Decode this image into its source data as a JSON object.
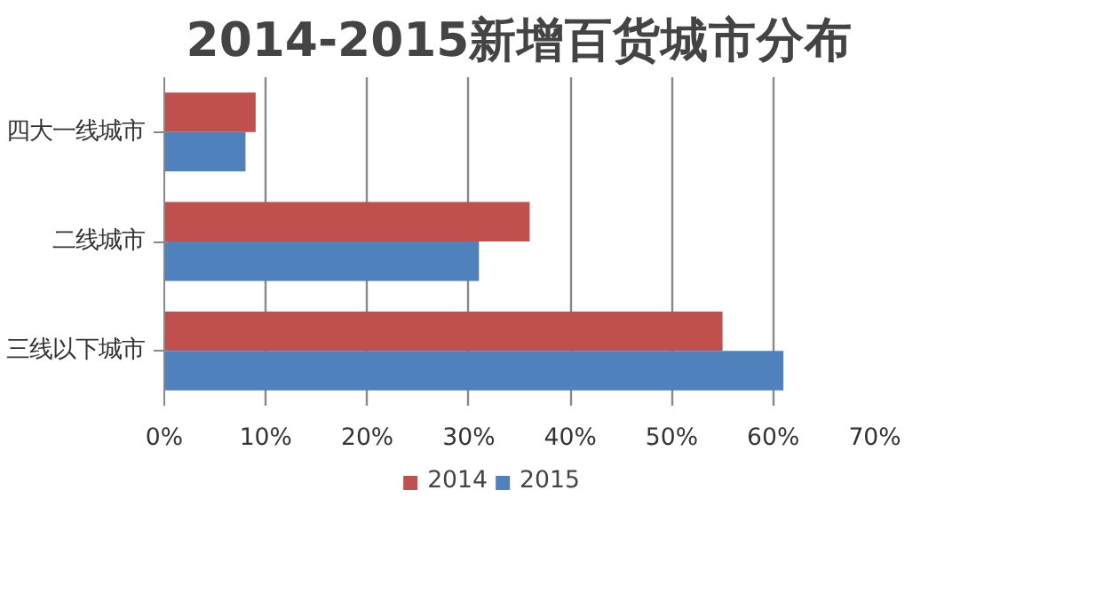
{
  "chart_data": {
    "type": "bar",
    "orientation": "horizontal",
    "title": "2014-2015新增百货城市分布",
    "categories": [
      "四大一线城市",
      "二线城市",
      "三线以下城市"
    ],
    "series": [
      {
        "name": "2014",
        "color": "#c0504d",
        "values": [
          9,
          36,
          55
        ]
      },
      {
        "name": "2015",
        "color": "#4f81bd",
        "values": [
          8,
          31,
          61
        ]
      }
    ],
    "xlim": [
      0,
      70
    ],
    "xticks": [
      {
        "value": 0,
        "label": "0%"
      },
      {
        "value": 10,
        "label": "10%"
      },
      {
        "value": 20,
        "label": "20%"
      },
      {
        "value": 30,
        "label": "30%"
      },
      {
        "value": 40,
        "label": "40%"
      },
      {
        "value": 50,
        "label": "50%"
      },
      {
        "value": 60,
        "label": "60%"
      },
      {
        "value": 70,
        "label": "70%"
      }
    ],
    "grid": "x",
    "legend": "bottom"
  }
}
